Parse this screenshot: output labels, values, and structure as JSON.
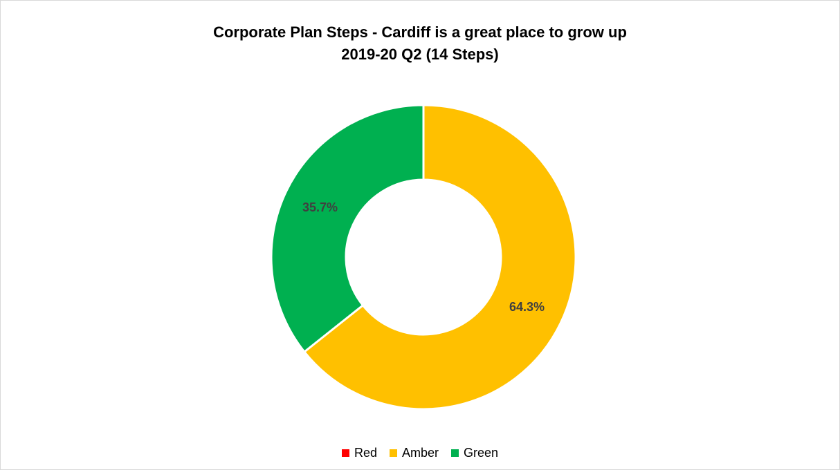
{
  "chart_data": {
    "type": "pie",
    "variant": "doughnut",
    "title": "Corporate Plan Steps - Cardiff is a great place to grow up",
    "subtitle": "2019-20 Q2 (14 Steps)",
    "legend_position": "bottom",
    "slices": [
      {
        "name": "Red",
        "value": 0,
        "label": "",
        "color": "#ff0000"
      },
      {
        "name": "Amber",
        "value": 64.3,
        "label": "64.3%",
        "color": "#ffc000"
      },
      {
        "name": "Green",
        "value": 35.7,
        "label": "35.7%",
        "color": "#00b050"
      }
    ],
    "label_color": "#404040"
  }
}
